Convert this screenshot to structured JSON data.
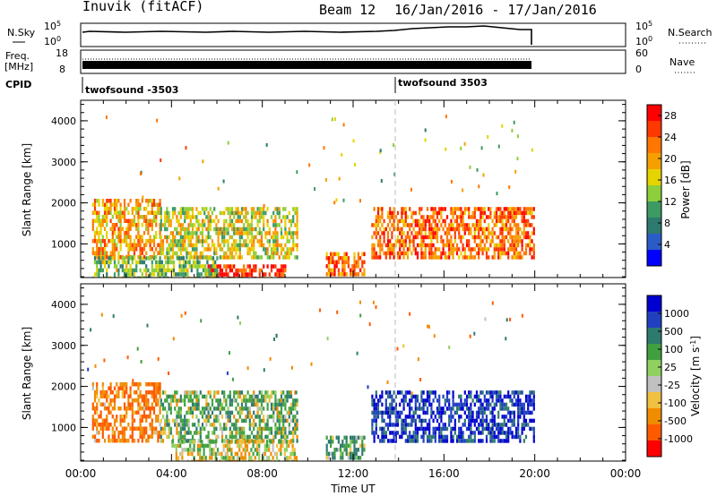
{
  "header": {
    "title": "Inuvik (fitACF)",
    "beam": "Beam 12",
    "dates": "16/Jan/2016 - 17/Jan/2016"
  },
  "strips": {
    "nsky_label": "N.Sky",
    "nsearch_label": "N.Search",
    "freq_label": "Freq.",
    "freq_unit": "[MHz]",
    "nave_label": "Nave",
    "cpid_label": "CPID",
    "nsky_ticks": [
      "10^5",
      "10^0"
    ],
    "nsearch_ticks": [
      "10^5",
      "10^0"
    ],
    "freq_ticks": [
      "18",
      "8"
    ],
    "nave_ticks": [
      "60",
      "0"
    ],
    "cpid_segments": [
      {
        "label": "twofsound -3503",
        "start_hour": 0
      },
      {
        "label": "twofsound 3503",
        "start_hour": 14
      }
    ]
  },
  "colors": {
    "power": [
      "#0000ff",
      "#2a5cc7",
      "#2e7a6e",
      "#3c9a62",
      "#8ccf3a",
      "#e6d400",
      "#f5a000",
      "#ff7600",
      "#ff3800",
      "#ff0000"
    ],
    "velocity": [
      "#ff0000",
      "#ff5a00",
      "#f08c00",
      "#f0c040",
      "#c0c0c0",
      "#90d060",
      "#40a040",
      "#2e7a6e",
      "#2040c0",
      "#0000d0"
    ]
  },
  "chart_data": [
    {
      "type": "heatmap",
      "name": "power",
      "ylabel": "Slant Range [km]",
      "yticks": [
        1000,
        2000,
        3000,
        4000
      ],
      "ylim": [
        180,
        4500
      ],
      "xlim": [
        0,
        24
      ],
      "colorbar_label": "Power [dB]",
      "colorbar_ticks": [
        4,
        8,
        12,
        16,
        20,
        24,
        28
      ],
      "colorbar_range": [
        0,
        30
      ],
      "data_end_hour": 20,
      "regions": [
        {
          "x": [
            0.5,
            3.5
          ],
          "y": [
            700,
            2100
          ],
          "value": 20
        },
        {
          "x": [
            3.5,
            9.5
          ],
          "y": [
            700,
            1900
          ],
          "value": 16
        },
        {
          "x": [
            5.5,
            9.0
          ],
          "y": [
            180,
            500
          ],
          "value": 28
        },
        {
          "x": [
            10.8,
            12.5
          ],
          "y": [
            250,
            800
          ],
          "value": 24
        },
        {
          "x": [
            12.8,
            20.0
          ],
          "y": [
            700,
            1900
          ],
          "value": 24
        },
        {
          "x": [
            0.5,
            6.0
          ],
          "y": [
            200,
            700
          ],
          "value": 12
        }
      ]
    },
    {
      "type": "heatmap",
      "name": "velocity",
      "ylabel": "Slant Range [km]",
      "yticks": [
        1000,
        2000,
        3000,
        4000
      ],
      "ylim": [
        180,
        4500
      ],
      "xlim": [
        0,
        24
      ],
      "colorbar_label": "Velocity [m s^-1]",
      "colorbar_ticks": [
        "1000",
        "500",
        "100",
        "25",
        "-25",
        "-100",
        "-500",
        "-1000"
      ],
      "data_end_hour": 20,
      "regions": [
        {
          "x": [
            0.5,
            3.5
          ],
          "y": [
            700,
            2100
          ],
          "value": -300
        },
        {
          "x": [
            3.5,
            9.5
          ],
          "y": [
            700,
            1900
          ],
          "value": 100
        },
        {
          "x": [
            4.0,
            9.5
          ],
          "y": [
            180,
            700
          ],
          "value": 0
        },
        {
          "x": [
            10.8,
            12.5
          ],
          "y": [
            250,
            800
          ],
          "value": 200
        },
        {
          "x": [
            12.8,
            20.0
          ],
          "y": [
            700,
            1900
          ],
          "value": 700
        }
      ]
    }
  ],
  "xaxis": {
    "label": "Time UT",
    "ticks": [
      "00:00",
      "04:00",
      "08:00",
      "12:00",
      "16:00",
      "20:00",
      "00:00"
    ]
  }
}
